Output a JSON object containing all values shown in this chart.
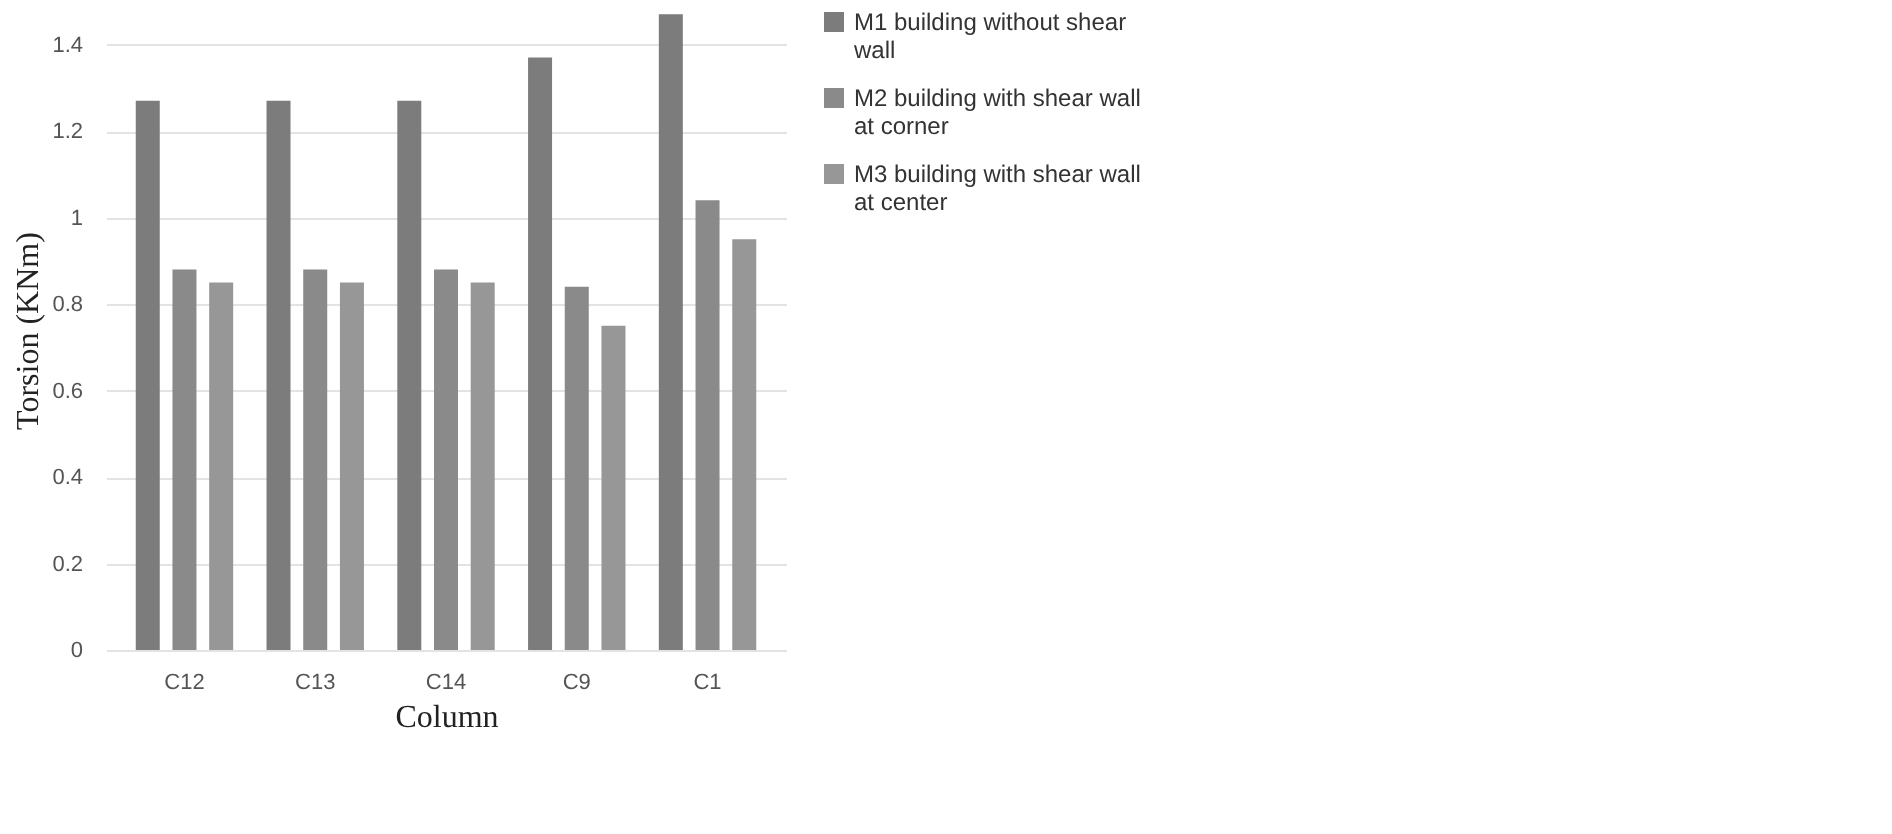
{
  "chart_data": {
    "type": "bar",
    "xlabel": "Column",
    "ylabel": "Torsion (KNm)",
    "categories": [
      "C12",
      "C13",
      "C14",
      "C9",
      "C1"
    ],
    "series": [
      {
        "name": "M1 building without shear wall",
        "color": "#7c7c7c",
        "values": [
          1.27,
          1.27,
          1.27,
          1.37,
          1.47
        ]
      },
      {
        "name": "M2 building with shear wall at corner",
        "color": "#8a8a8a",
        "values": [
          0.88,
          0.88,
          0.88,
          0.84,
          1.04
        ]
      },
      {
        "name": "M3 building with shear wall at center",
        "color": "#979797",
        "values": [
          0.85,
          0.85,
          0.85,
          0.75,
          0.95
        ]
      }
    ],
    "ylim": [
      0,
      1.48
    ],
    "yticks": [
      0,
      0.2,
      0.4,
      0.6,
      0.8,
      1,
      1.2,
      1.4
    ],
    "grid": "y",
    "legend": "right"
  }
}
